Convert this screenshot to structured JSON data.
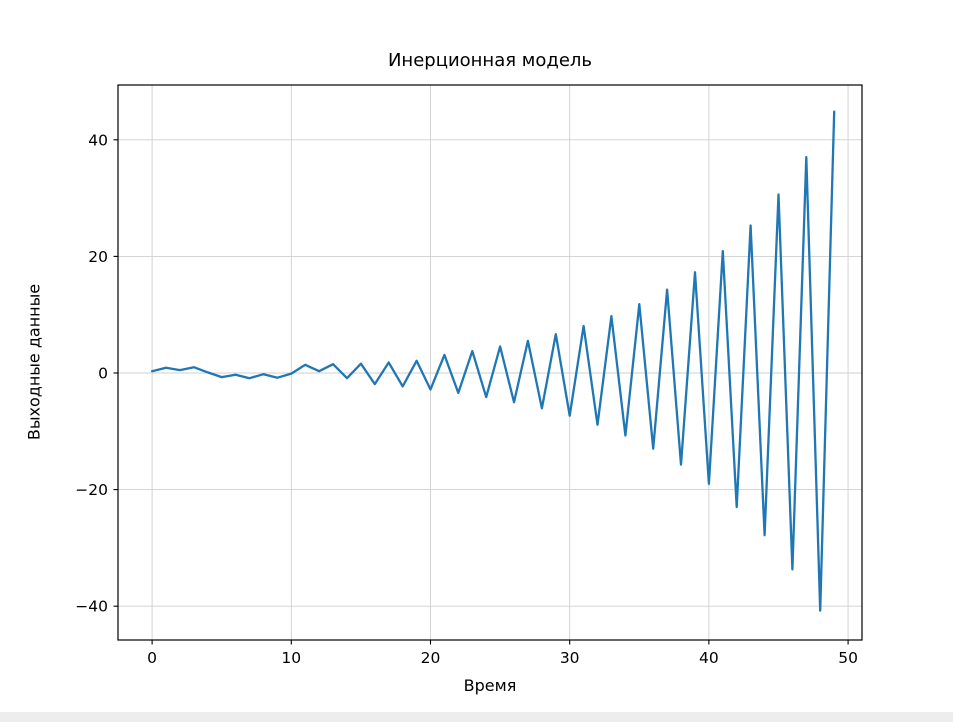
{
  "figure": {
    "title": "Инерционная модель",
    "xlabel": "Время",
    "ylabel": "Выходные данные"
  },
  "chart_data": {
    "type": "line",
    "title": "Инерционная модель",
    "xlabel": "Время",
    "ylabel": "Выходные данные",
    "grid": true,
    "legend": false,
    "line_color": "#1f77b4",
    "xticks": [
      0,
      10,
      20,
      30,
      40,
      50
    ],
    "yticks": [
      -40,
      -20,
      0,
      20,
      40
    ],
    "xlim": [
      -2.45,
      51.0
    ],
    "ylim": [
      -45.8,
      49.4
    ],
    "series": [
      {
        "name": "Выходные данные",
        "color": "#1f77b4",
        "x": [
          0,
          1,
          2,
          3,
          4,
          5,
          6,
          7,
          8,
          9,
          10,
          11,
          12,
          13,
          14,
          15,
          16,
          17,
          18,
          19,
          20,
          21,
          22,
          23,
          24,
          25,
          26,
          27,
          28,
          29,
          30,
          31,
          32,
          33,
          34,
          35,
          36,
          37,
          38,
          39,
          40,
          41,
          42,
          43,
          44,
          45,
          46,
          47,
          48,
          49
        ],
        "y": [
          0.3,
          0.9,
          0.5,
          1.0,
          0.1,
          -0.7,
          -0.3,
          -0.9,
          -0.2,
          -0.8,
          -0.1,
          1.4,
          0.3,
          1.5,
          -0.9,
          1.6,
          -1.9,
          1.8,
          -2.3,
          2.1,
          -2.83,
          3.11,
          -3.42,
          3.76,
          -4.14,
          4.55,
          -5.01,
          5.51,
          -6.06,
          6.66,
          -7.33,
          8.06,
          -8.87,
          9.75,
          -10.73,
          11.8,
          -12.98,
          14.28,
          -15.71,
          17.28,
          -19.01,
          20.91,
          -23.0,
          25.3,
          -27.83,
          30.61,
          -33.68,
          37.04,
          -40.75,
          44.82
        ]
      }
    ]
  }
}
